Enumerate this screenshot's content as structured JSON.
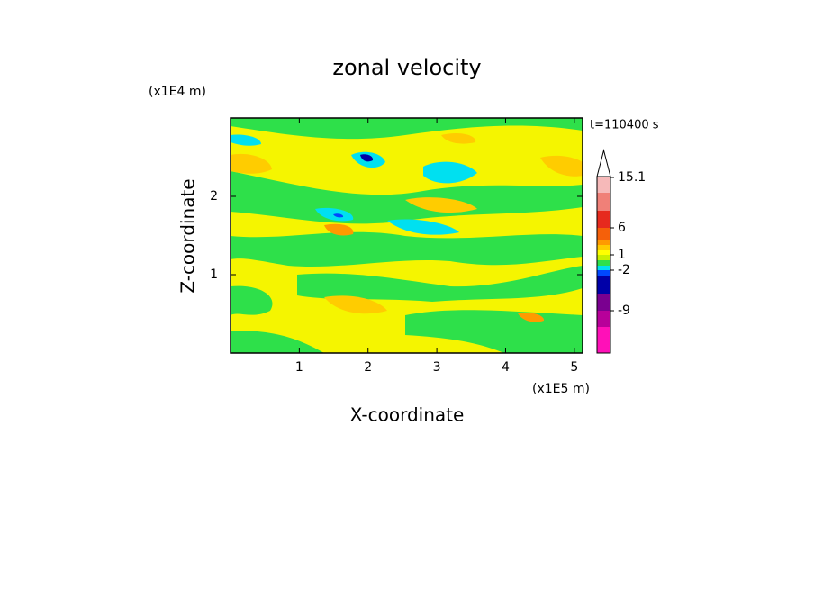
{
  "chart_data": {
    "type": "contour",
    "title": "zonal velocity",
    "x_label": "X-coordinate",
    "y_label": "Z-coordinate",
    "x_unit": "(x1E5 m)",
    "y_unit": "(x1E4 m)",
    "annotation": "t=110400 s",
    "xlim": [
      0,
      5.12
    ],
    "xticks": [
      1,
      2,
      3,
      4,
      5
    ],
    "ylim": [
      0,
      3
    ],
    "yticks": [
      1,
      2
    ],
    "colorbar_ticks": [
      15.1,
      6,
      1,
      -2,
      -9
    ],
    "colorbar_colors": [
      "#f6b9b9",
      "#f08078",
      "#e62a1e",
      "#f5600a",
      "#ff9a00",
      "#ffcc00",
      "#ffff00",
      "#c8f000",
      "#2ee04a",
      "#00e0f0",
      "#0048ff",
      "#0000a8",
      "#7a0090",
      "#b8009a",
      "#ff10b8"
    ]
  }
}
